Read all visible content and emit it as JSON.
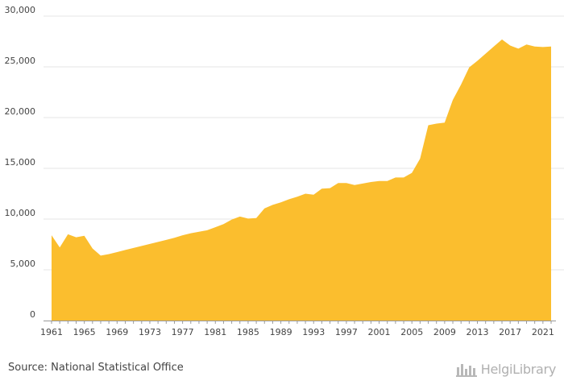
{
  "chart_data": {
    "type": "area",
    "title": "",
    "xlabel": "",
    "ylabel": "",
    "x": [
      1961,
      1962,
      1963,
      1964,
      1965,
      1966,
      1967,
      1968,
      1969,
      1970,
      1971,
      1972,
      1973,
      1974,
      1975,
      1976,
      1977,
      1978,
      1979,
      1980,
      1981,
      1982,
      1983,
      1984,
      1985,
      1986,
      1987,
      1988,
      1989,
      1990,
      1991,
      1992,
      1993,
      1994,
      1995,
      1996,
      1997,
      1998,
      1999,
      2000,
      2001,
      2002,
      2003,
      2004,
      2005,
      2006,
      2007,
      2008,
      2009,
      2010,
      2011,
      2012,
      2013,
      2014,
      2015,
      2016,
      2017,
      2018,
      2019,
      2020,
      2021,
      2022
    ],
    "values": [
      8400,
      7200,
      8500,
      8200,
      8350,
      7100,
      6400,
      6550,
      6750,
      6950,
      7150,
      7350,
      7550,
      7750,
      7950,
      8150,
      8400,
      8600,
      8750,
      8900,
      9200,
      9500,
      9950,
      10250,
      10050,
      10100,
      11050,
      11400,
      11650,
      11950,
      12200,
      12500,
      12400,
      13000,
      13050,
      13550,
      13550,
      13350,
      13500,
      13650,
      13750,
      13750,
      14100,
      14100,
      14550,
      15950,
      19250,
      19400,
      19500,
      21750,
      23250,
      24950,
      25600,
      26300,
      27000,
      27700,
      27100,
      26800,
      27200,
      27000,
      26950,
      27000
    ],
    "xticks": [
      "1961",
      "1965",
      "1969",
      "1973",
      "1977",
      "1981",
      "1985",
      "1989",
      "1993",
      "1997",
      "2001",
      "2005",
      "2009",
      "2013",
      "2017",
      "2021"
    ],
    "yticks": [
      "0",
      "5,000",
      "10,000",
      "15,000",
      "20,000",
      "25,000",
      "30,000"
    ],
    "ylim": [
      0,
      30000
    ],
    "xlim": [
      1961,
      2022
    ],
    "grid": true,
    "legend": "none",
    "colors": {
      "area": "#FBBE2E",
      "grid": "#e6e6e6",
      "axis": "#999999"
    }
  },
  "footer": {
    "source": "Source: National Statistical Office",
    "logo_text": "HelgiLibrary"
  }
}
